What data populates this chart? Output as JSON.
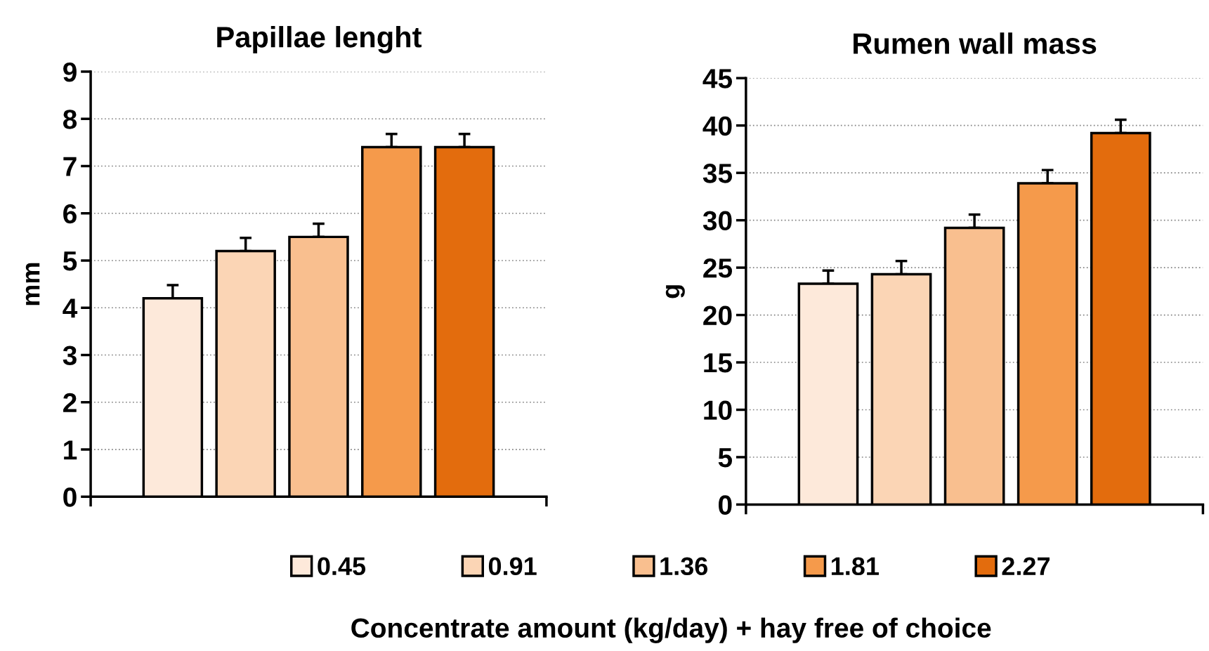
{
  "chart_data": [
    {
      "type": "bar",
      "title": "Papillae lenght",
      "ylabel": "mm",
      "categories": [
        null
      ],
      "series": [
        {
          "name": "0.45",
          "color": "#fde9da",
          "values": [
            4.2
          ],
          "errors": [
            0.28
          ]
        },
        {
          "name": "0.91",
          "color": "#fbd5b5",
          "values": [
            5.2
          ],
          "errors": [
            0.28
          ]
        },
        {
          "name": "1.36",
          "color": "#f9bf8f",
          "values": [
            5.5
          ],
          "errors": [
            0.28
          ]
        },
        {
          "name": "1.81",
          "color": "#f59a4b",
          "values": [
            7.4
          ],
          "errors": [
            0.28
          ]
        },
        {
          "name": "2.27",
          "color": "#e36c0d",
          "values": [
            7.4
          ],
          "errors": [
            0.28
          ]
        }
      ],
      "ylim": [
        0,
        9
      ],
      "yticks": [
        0,
        1,
        2,
        3,
        4,
        5,
        6,
        7,
        8,
        9
      ],
      "grid": "y",
      "legend": "bottom"
    },
    {
      "type": "bar",
      "title": "Rumen wall mass",
      "ylabel": "g",
      "xlabel": "Concentrate amount (kg/day) + hay free of choice",
      "categories": [
        null
      ],
      "series": [
        {
          "name": "0.45",
          "color": "#fde9da",
          "values": [
            23.3
          ],
          "errors": [
            1.4
          ]
        },
        {
          "name": "0.91",
          "color": "#fbd5b5",
          "values": [
            24.3
          ],
          "errors": [
            1.4
          ]
        },
        {
          "name": "1.36",
          "color": "#f9bf8f",
          "values": [
            29.2
          ],
          "errors": [
            1.4
          ]
        },
        {
          "name": "1.81",
          "color": "#f59a4b",
          "values": [
            33.9
          ],
          "errors": [
            1.4
          ]
        },
        {
          "name": "2.27",
          "color": "#e36c0d",
          "values": [
            39.2
          ],
          "errors": [
            1.4
          ]
        }
      ],
      "ylim": [
        0,
        45
      ],
      "yticks": [
        0,
        5,
        10,
        15,
        20,
        25,
        30,
        35,
        40,
        45
      ],
      "grid": "y",
      "legend": "bottom"
    }
  ]
}
